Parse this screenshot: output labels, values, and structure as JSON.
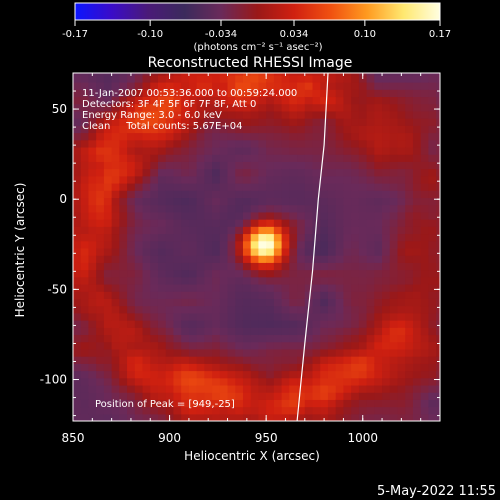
{
  "colorbar": {
    "ticks": [
      -0.17,
      -0.1,
      -0.034,
      0.034,
      0.1,
      0.17
    ],
    "tick_labels": [
      "-0.17",
      "-0.10",
      "-0.034",
      "0.034",
      "0.10",
      "0.17"
    ],
    "unit_label": "(photons cm⁻² s⁻¹ asec⁻²)",
    "colors": [
      "#0b16ff",
      "#3a0cc8",
      "#4a1a78",
      "#3b2a5c",
      "#6a2a5a",
      "#9a1818",
      "#d02010",
      "#f05010",
      "#ff9a20",
      "#ffe870",
      "#fffee0"
    ]
  },
  "chart_data": {
    "type": "heatmap",
    "title": "Reconstructed RHESSI Image",
    "xlabel": "Heliocentric X (arcsec)",
    "ylabel": "Heliocentric Y (arcsec)",
    "xlim": [
      850,
      1040
    ],
    "ylim": [
      -123,
      70
    ],
    "xticks": [
      850,
      900,
      950,
      1000
    ],
    "yticks": [
      -100,
      -50,
      0,
      50
    ],
    "xtick_labels": [
      "850",
      "900",
      "950",
      "1000"
    ],
    "ytick_labels": [
      "-100",
      "-50",
      "0",
      "50"
    ],
    "annotations": [
      "11-Jan-2007 00:53:36.000 to 00:59:24.000",
      "Detectors: 3F 4F 5F 6F 7F 8F, Att 0",
      "Energy Range: 3.0 - 6.0 keV",
      "Clean     Total counts: 5.67E+04"
    ],
    "peak_label": "Position of Peak = [949,-25]",
    "peak": [
      949,
      -25
    ],
    "background_value": -0.03,
    "ring": {
      "center": [
        945,
        -23
      ],
      "radius": 88,
      "value": 0.07,
      "gaps": [
        {
          "angle_deg": 0,
          "strength": 0.55
        },
        {
          "angle_deg": 35,
          "strength": 0.5
        },
        {
          "angle_deg": 200,
          "strength": 0.35
        }
      ]
    },
    "limb_curve": [
      [
        982,
        70
      ],
      [
        980,
        30
      ],
      [
        977,
        0
      ],
      [
        974,
        -40
      ],
      [
        970,
        -80
      ],
      [
        966,
        -123
      ]
    ]
  },
  "footer": {
    "date": "5-May-2022 11:55"
  }
}
